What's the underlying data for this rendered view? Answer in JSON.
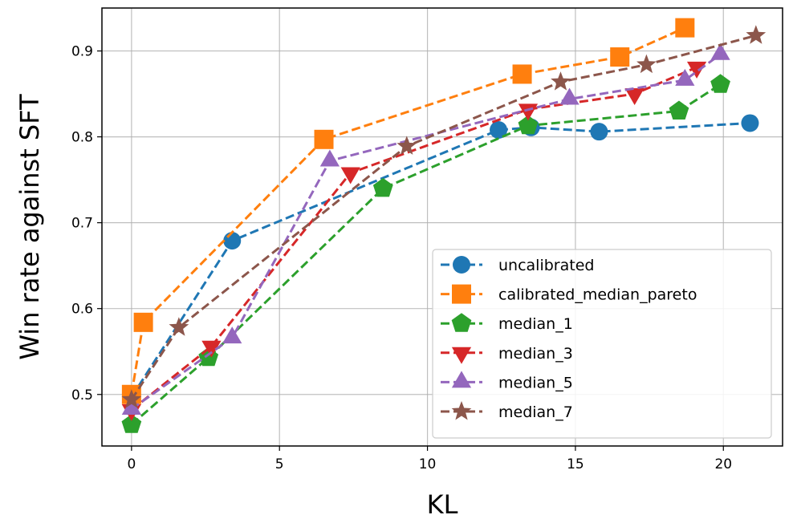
{
  "chart_data": {
    "type": "line",
    "title": "",
    "xlabel": "KL",
    "ylabel": "Win rate against SFT",
    "xlim": [
      -1.0,
      22.0
    ],
    "ylim": [
      0.44,
      0.95
    ],
    "xticks": [
      0,
      5,
      10,
      15,
      20
    ],
    "yticks": [
      0.5,
      0.6,
      0.7,
      0.8,
      0.9
    ],
    "xtick_labels": [
      "0",
      "5",
      "10",
      "15",
      "20"
    ],
    "ytick_labels": [
      "0.5",
      "0.6",
      "0.7",
      "0.8",
      "0.9"
    ],
    "grid": true,
    "legend_position": "lower-right",
    "series": [
      {
        "name": "uncalibrated",
        "color": "#1f77b4",
        "marker": "circle",
        "x": [
          0.0,
          3.4,
          12.4,
          13.5,
          15.8,
          20.9
        ],
        "y": [
          0.497,
          0.679,
          0.808,
          0.811,
          0.806,
          0.816
        ]
      },
      {
        "name": "calibrated_median_pareto",
        "color": "#ff7f0e",
        "marker": "square",
        "x": [
          0.0,
          0.4,
          6.5,
          13.2,
          16.5,
          18.7
        ],
        "y": [
          0.5,
          0.584,
          0.797,
          0.873,
          0.893,
          0.927
        ]
      },
      {
        "name": "median_1",
        "color": "#2ca02c",
        "marker": "pentagon",
        "x": [
          0.0,
          2.6,
          8.5,
          13.4,
          18.5,
          19.9
        ],
        "y": [
          0.465,
          0.543,
          0.74,
          0.813,
          0.83,
          0.861
        ]
      },
      {
        "name": "median_3",
        "color": "#d62728",
        "marker": "triangle-down",
        "x": [
          0.0,
          2.7,
          7.4,
          13.4,
          17.0,
          19.1
        ],
        "y": [
          0.482,
          0.556,
          0.758,
          0.832,
          0.85,
          0.881
        ]
      },
      {
        "name": "median_5",
        "color": "#9467bd",
        "marker": "triangle-up",
        "x": [
          0.0,
          3.4,
          6.7,
          14.8,
          18.7,
          19.9
        ],
        "y": [
          0.483,
          0.566,
          0.772,
          0.844,
          0.866,
          0.896
        ]
      },
      {
        "name": "median_7",
        "color": "#8c564b",
        "marker": "star",
        "x": [
          0.0,
          1.6,
          9.3,
          14.5,
          17.4,
          21.1
        ],
        "y": [
          0.494,
          0.578,
          0.789,
          0.864,
          0.884,
          0.918
        ]
      }
    ]
  }
}
